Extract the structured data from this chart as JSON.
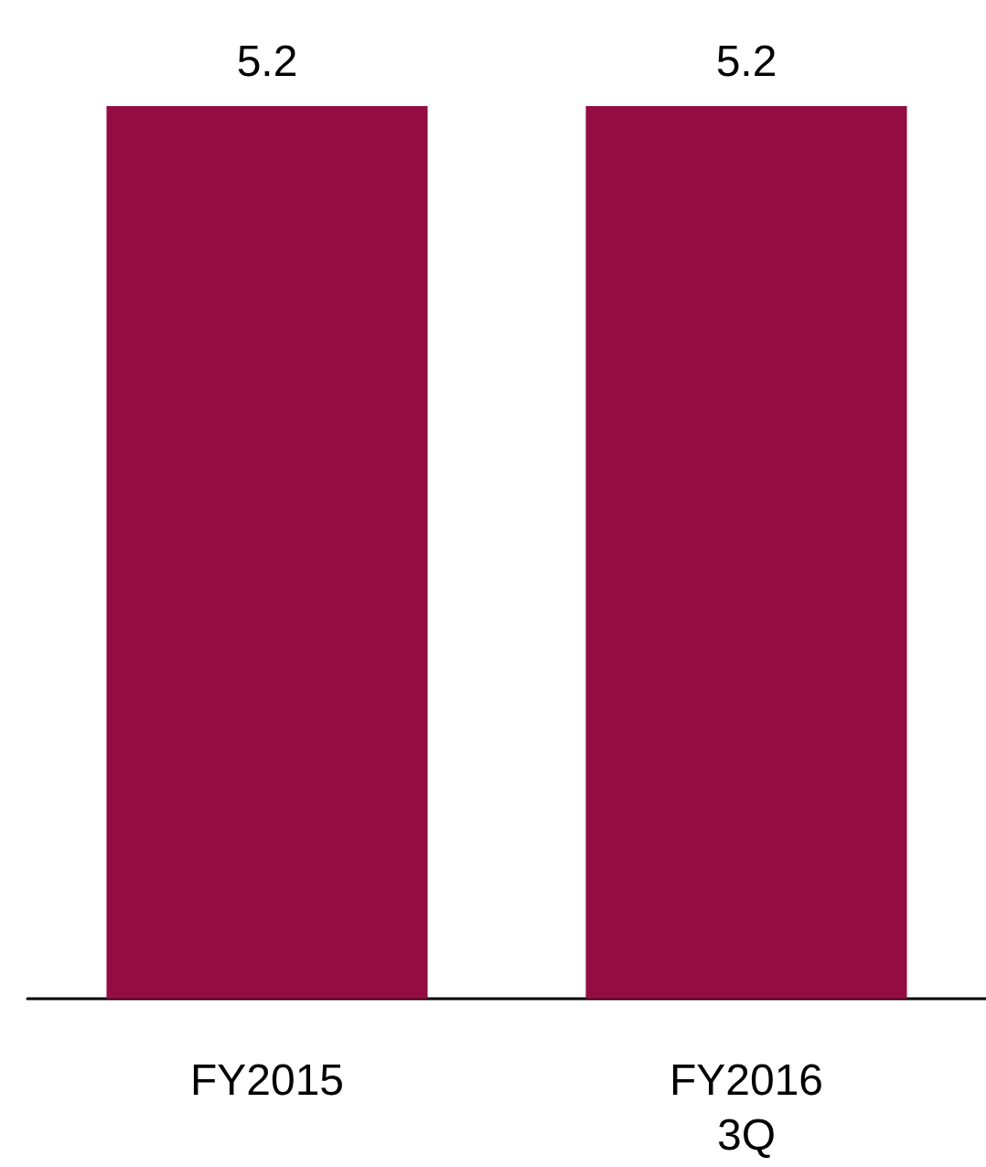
{
  "chart_data": {
    "type": "bar",
    "categories": [
      "FY2015",
      "FY2016\n3Q"
    ],
    "values": [
      5.2,
      5.2
    ],
    "color": "#930c42",
    "data_labels": true
  }
}
